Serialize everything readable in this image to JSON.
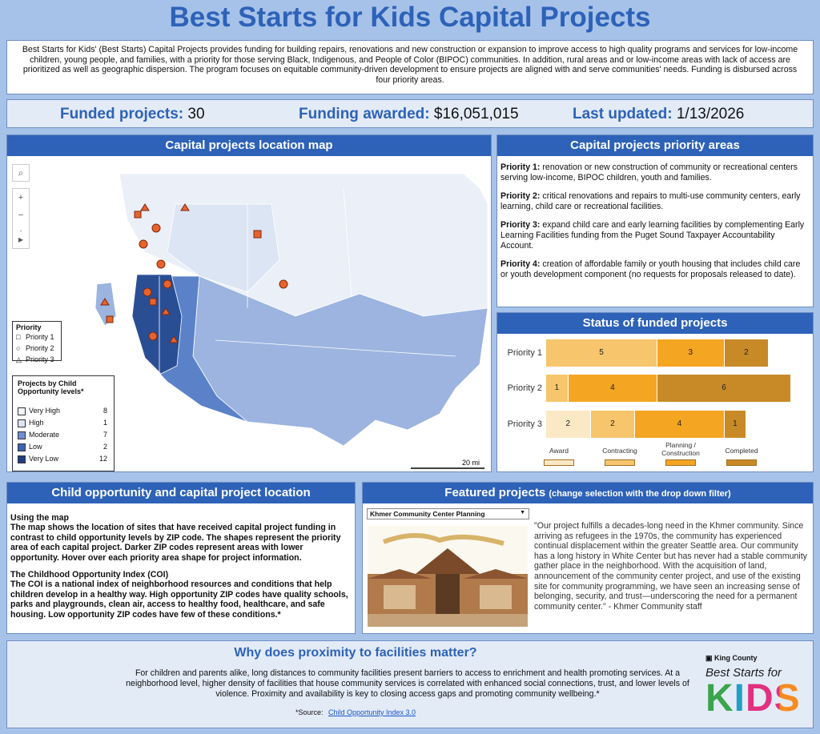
{
  "header": {
    "title": "Best Starts for Kids Capital Projects"
  },
  "intro": "Best Starts for Kids' (Best Starts) Capital Projects provides funding for building repairs, renovations and new construction or expansion to improve access to high quality programs and services for low-income children, young people, and families, with a priority for those serving Black, Indigenous, and People of Color (BIPOC) communities. In addition, rural areas and or low-income areas with lack of access are prioritized as well as geographic dispersion. The program focuses on equitable community-driven development to ensure projects are aligned with and serve communities' needs. Funding is disbursed across four priority areas.",
  "stats": {
    "funded_label": "Funded projects:",
    "funded_value": 30,
    "funding_label": "Funding awarded:",
    "funding_value": "$16,051,015",
    "updated_label": "Last updated:",
    "updated_value": "1/13/2026"
  },
  "map": {
    "title": "Capital projects location map",
    "legend_priority": {
      "title": "Priority",
      "items": [
        "Priority 1",
        "Priority 2",
        "Priority 3"
      ]
    },
    "legend_coi": {
      "title": "Projects by Child Opportunity levels*",
      "levels": [
        {
          "label": "Very High",
          "count": 8
        },
        {
          "label": "High",
          "count": 1
        },
        {
          "label": "Moderate",
          "count": 7
        },
        {
          "label": "Low",
          "count": 2
        },
        {
          "label": "Very Low",
          "count": 12
        }
      ]
    },
    "scale": "20 mi"
  },
  "priority_areas": {
    "title": "Capital projects priority areas",
    "items": [
      {
        "label": "Priority 1:",
        "text": "renovation or new construction of community or recreational centers serving low-income, BIPOC children, youth and families."
      },
      {
        "label": "Priority 2:",
        "text": "critical renovations and repairs to multi-use community centers, early learning, child care or recreational facilities."
      },
      {
        "label": "Priority 3:",
        "text": "expand child care and early learning facilities by complementing Early Learning Facilities funding from the Puget Sound Taxpayer Accountability Account."
      },
      {
        "label": "Priority 4:",
        "text": "creation of affordable family or youth housing that includes child care or youth development component (no requests for proposals released to date)."
      }
    ]
  },
  "chart_data": {
    "type": "stacked-bar-horizontal",
    "title": "Status of funded projects",
    "categories": [
      "Priority 1",
      "Priority 2",
      "Priority 3"
    ],
    "series": [
      {
        "name": "Award",
        "color": "#fbe9c6",
        "values": [
          null,
          null,
          2
        ]
      },
      {
        "name": "Contracting",
        "color": "#f6c56c",
        "values": [
          5,
          1,
          2
        ]
      },
      {
        "name": "Planning / Construction",
        "color": "#f4a521",
        "values": [
          3,
          4,
          4
        ]
      },
      {
        "name": "Completed",
        "color": "#c78a27",
        "values": [
          2,
          6,
          1
        ]
      }
    ]
  },
  "coi_panel": {
    "title": "Child opportunity and capital project location",
    "sections": [
      {
        "heading": "Using the map",
        "text": "The map shows the location of sites that have received capital project funding in contrast to child opportunity levels by ZIP code. The shapes represent the priority area of each capital project. Darker ZIP codes represent areas with lower opportunity. Hover over each priority area shape for project information."
      },
      {
        "heading": "The Childhood Opportunity Index (COI)",
        "text": "The COI is a national index of neighborhood resources and conditions that help children develop in a healthy way. High opportunity ZIP codes have quality schools, parks and playgrounds, clean air, access to healthy food, healthcare, and safe housing. Low opportunity ZIP codes have few of these conditions.*"
      }
    ]
  },
  "featured": {
    "title": "Featured projects",
    "subtitle": "(change selection with the drop down filter)",
    "selected": "Khmer Community Center Planning",
    "quote": "\"Our project fulfills a decades-long need in the Khmer community. Since arriving as refugees in the 1970s, the community has experienced continual displacement within the greater Seattle area. Our community has a long history in White Center but has never had a stable community gather place in the neighborhood. With the acquisition of land, announcement of the community center project, and use of the existing site for community programming, we have seen an increasing sense of belonging, security, and trust—underscoring the need for a permanent community center.\" - Khmer Community staff"
  },
  "footer": {
    "title": "Why does proximity to facilities matter?",
    "text": "For children and parents alike, long distances to community facilities present barriers to access to enrichment and health promoting services. At a neighborhood level, higher density of facilities that house community services is correlated with enhanced social connections, trust, and lower levels of violence. Proximity and availability is key to closing access gaps and promoting community wellbeing.*",
    "source_label": "*Source:",
    "source_link": "Child Opportunity Index 3.0",
    "logo": {
      "org": "King County",
      "line1": "Best Starts for",
      "line2": "KIDS"
    }
  }
}
